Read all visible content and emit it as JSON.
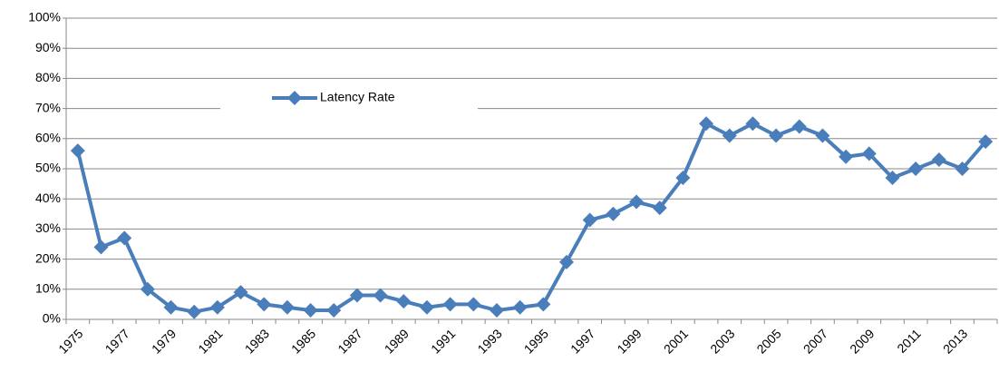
{
  "chart_data": {
    "type": "line",
    "categories": [
      "1975",
      null,
      "1977",
      null,
      "1979",
      null,
      "1981",
      null,
      "1983",
      null,
      "1985",
      null,
      "1987",
      null,
      "1989",
      null,
      "1991",
      null,
      "1993",
      null,
      "1995",
      null,
      "1997",
      null,
      "1999",
      null,
      "2001",
      null,
      "2003",
      null,
      "2005",
      null,
      "2007",
      null,
      "2009",
      null,
      "2011",
      null,
      "2013",
      null
    ],
    "series": [
      {
        "name": "Latency Rate",
        "color": "#4a7ebb",
        "values": [
          56,
          24,
          27,
          10,
          4,
          2.5,
          4,
          9,
          5,
          4,
          3,
          3,
          8,
          8,
          6,
          4,
          5,
          5,
          3,
          4,
          5,
          19,
          33,
          35,
          39,
          37,
          47,
          65,
          61,
          65,
          61,
          64,
          61,
          54,
          55,
          47,
          50,
          53,
          50,
          59
        ]
      }
    ],
    "ylim": [
      0,
      100
    ],
    "yticks": [
      {
        "value": 0,
        "label": "0%"
      },
      {
        "value": 10,
        "label": "10%"
      },
      {
        "value": 20,
        "label": "20%"
      },
      {
        "value": 30,
        "label": "30%"
      },
      {
        "value": 40,
        "label": "40%"
      },
      {
        "value": 50,
        "label": "50%"
      },
      {
        "value": 60,
        "label": "60%"
      },
      {
        "value": 70,
        "label": "70%"
      },
      {
        "value": 80,
        "label": "80%"
      },
      {
        "value": 90,
        "label": "90%"
      },
      {
        "value": 100,
        "label": "100%"
      }
    ],
    "grid": true,
    "legend": "upper center"
  }
}
